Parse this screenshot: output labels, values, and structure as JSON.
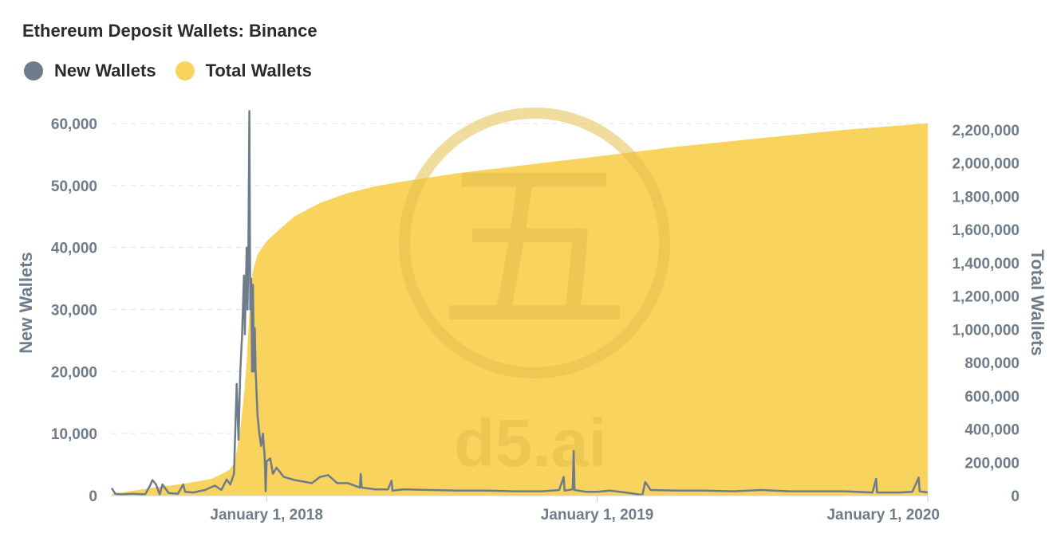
{
  "chart_data": {
    "type": "line+area",
    "title": "Ethereum Deposit Wallets: Binance",
    "ylabel_left": "New Wallets",
    "ylabel_right": "Total Wallets",
    "ylim_left": [
      0,
      60000
    ],
    "ylim_right": [
      0,
      2200000
    ],
    "yticks_left": [
      "0",
      "10,000",
      "20,000",
      "30,000",
      "40,000",
      "50,000",
      "60,000"
    ],
    "yticks_right": [
      "0",
      "200,000",
      "400,000",
      "600,000",
      "800,000",
      "1,000,000",
      "1,200,000",
      "1,400,000",
      "1,600,000",
      "1,800,000",
      "2,000,000",
      "2,200,000"
    ],
    "xticks": [
      "January 1, 2018",
      "January 1, 2019",
      "January 1, 2020"
    ],
    "xlim": [
      "2017-07-14",
      "2020-01-01"
    ],
    "legend_placement": "top-left",
    "grid": "horizontal dashed",
    "series": [
      {
        "name": "New Wallets",
        "kind": "line",
        "axis": "left",
        "color": "#6e7b8b",
        "points": [
          [
            "2017-07-14",
            1200
          ],
          [
            "2017-07-18",
            300
          ],
          [
            "2017-07-25",
            200
          ],
          [
            "2017-08-05",
            300
          ],
          [
            "2017-08-20",
            200
          ],
          [
            "2017-08-25",
            1500
          ],
          [
            "2017-08-28",
            2500
          ],
          [
            "2017-09-01",
            1800
          ],
          [
            "2017-09-05",
            200
          ],
          [
            "2017-09-08",
            1800
          ],
          [
            "2017-09-15",
            400
          ],
          [
            "2017-09-25",
            300
          ],
          [
            "2017-10-01",
            1800
          ],
          [
            "2017-10-03",
            600
          ],
          [
            "2017-10-12",
            500
          ],
          [
            "2017-10-25",
            900
          ],
          [
            "2017-11-05",
            1600
          ],
          [
            "2017-11-12",
            900
          ],
          [
            "2017-11-18",
            2600
          ],
          [
            "2017-11-22",
            1800
          ],
          [
            "2017-11-26",
            3500
          ],
          [
            "2017-11-29",
            18000
          ],
          [
            "2017-12-01",
            9000
          ],
          [
            "2017-12-03",
            20000
          ],
          [
            "2017-12-05",
            26000
          ],
          [
            "2017-12-07",
            35500
          ],
          [
            "2017-12-08",
            26000
          ],
          [
            "2017-12-10",
            40000
          ],
          [
            "2017-12-11",
            30000
          ],
          [
            "2017-12-12",
            40000
          ],
          [
            "2017-12-13",
            62000
          ],
          [
            "2017-12-14",
            30000
          ],
          [
            "2017-12-15",
            35000
          ],
          [
            "2017-12-16",
            20000
          ],
          [
            "2017-12-17",
            34000
          ],
          [
            "2017-12-18",
            20000
          ],
          [
            "2017-12-19",
            27000
          ],
          [
            "2017-12-20",
            20000
          ],
          [
            "2017-12-22",
            13000
          ],
          [
            "2017-12-24",
            10000
          ],
          [
            "2017-12-26",
            8000
          ],
          [
            "2017-12-28",
            10000
          ],
          [
            "2017-12-30",
            6000
          ],
          [
            "2017-12-31",
            700
          ],
          [
            "2018-01-01",
            5500
          ],
          [
            "2018-01-05",
            6000
          ],
          [
            "2018-01-08",
            3500
          ],
          [
            "2018-01-12",
            4500
          ],
          [
            "2018-01-20",
            3000
          ],
          [
            "2018-02-01",
            2500
          ],
          [
            "2018-02-20",
            2000
          ],
          [
            "2018-03-01",
            3000
          ],
          [
            "2018-03-10",
            3300
          ],
          [
            "2018-03-20",
            2000
          ],
          [
            "2018-04-01",
            2000
          ],
          [
            "2018-04-14",
            1300
          ],
          [
            "2018-04-15",
            3500
          ],
          [
            "2018-04-16",
            1300
          ],
          [
            "2018-05-01",
            1000
          ],
          [
            "2018-05-15",
            1000
          ],
          [
            "2018-05-19",
            2400
          ],
          [
            "2018-05-20",
            800
          ],
          [
            "2018-06-01",
            1000
          ],
          [
            "2018-07-01",
            900
          ],
          [
            "2018-08-01",
            800
          ],
          [
            "2018-09-01",
            800
          ],
          [
            "2018-10-01",
            700
          ],
          [
            "2018-11-01",
            700
          ],
          [
            "2018-11-20",
            900
          ],
          [
            "2018-11-25",
            3000
          ],
          [
            "2018-11-26",
            800
          ],
          [
            "2018-12-05",
            1000
          ],
          [
            "2018-12-06",
            7200
          ],
          [
            "2018-12-07",
            900
          ],
          [
            "2018-12-20",
            600
          ],
          [
            "2019-01-01",
            600
          ],
          [
            "2019-01-15",
            800
          ],
          [
            "2019-02-01",
            500
          ],
          [
            "2019-02-20",
            100
          ],
          [
            "2019-02-23",
            2200
          ],
          [
            "2019-03-01",
            900
          ],
          [
            "2019-04-01",
            800
          ],
          [
            "2019-05-01",
            800
          ],
          [
            "2019-06-01",
            700
          ],
          [
            "2019-07-01",
            900
          ],
          [
            "2019-08-01",
            700
          ],
          [
            "2019-09-01",
            700
          ],
          [
            "2019-10-01",
            700
          ],
          [
            "2019-11-01",
            500
          ],
          [
            "2019-11-05",
            2700
          ],
          [
            "2019-11-06",
            500
          ],
          [
            "2019-12-01",
            500
          ],
          [
            "2019-12-15",
            600
          ],
          [
            "2019-12-22",
            2900
          ],
          [
            "2019-12-23",
            700
          ],
          [
            "2020-01-01",
            500
          ]
        ]
      },
      {
        "name": "Total Wallets",
        "kind": "area",
        "axis": "right",
        "color": "#f8d35e",
        "points": [
          [
            "2017-07-14",
            10000
          ],
          [
            "2017-09-01",
            50000
          ],
          [
            "2017-10-01",
            70000
          ],
          [
            "2017-11-01",
            100000
          ],
          [
            "2017-11-20",
            150000
          ],
          [
            "2017-11-27",
            200000
          ],
          [
            "2017-12-03",
            400000
          ],
          [
            "2017-12-07",
            600000
          ],
          [
            "2017-12-10",
            800000
          ],
          [
            "2017-12-12",
            1000000
          ],
          [
            "2017-12-14",
            1200000
          ],
          [
            "2017-12-17",
            1350000
          ],
          [
            "2017-12-22",
            1450000
          ],
          [
            "2018-01-01",
            1530000
          ],
          [
            "2018-01-15",
            1600000
          ],
          [
            "2018-02-01",
            1680000
          ],
          [
            "2018-03-01",
            1760000
          ],
          [
            "2018-04-01",
            1820000
          ],
          [
            "2018-05-01",
            1860000
          ],
          [
            "2018-06-01",
            1890000
          ],
          [
            "2018-08-01",
            1940000
          ],
          [
            "2018-10-01",
            1980000
          ],
          [
            "2019-01-01",
            2040000
          ],
          [
            "2019-04-01",
            2100000
          ],
          [
            "2019-07-01",
            2150000
          ],
          [
            "2019-10-01",
            2200000
          ],
          [
            "2020-01-01",
            2240000
          ]
        ]
      }
    ]
  },
  "watermark": {
    "glyph": "五",
    "text": "d5.ai"
  }
}
